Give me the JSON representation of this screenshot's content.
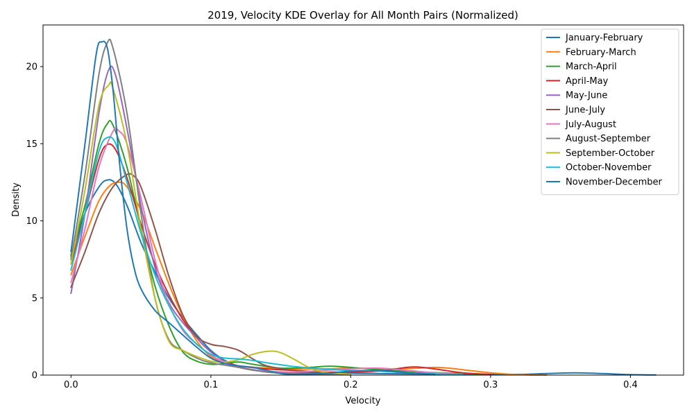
{
  "chart_data": {
    "type": "line",
    "title": "2019, Velocity KDE Overlay for All Month Pairs (Normalized)",
    "xlabel": "Velocity",
    "ylabel": "Density",
    "xlim": [
      -0.02,
      0.438
    ],
    "ylim": [
      0,
      22.7
    ],
    "xticks": [
      0.0,
      0.1,
      0.2,
      0.3,
      0.4
    ],
    "xtick_labels": [
      "0.0",
      "0.1",
      "0.2",
      "0.3",
      "0.4"
    ],
    "yticks": [
      0,
      5,
      10,
      15,
      20
    ],
    "ytick_labels": [
      "0",
      "5",
      "10",
      "15",
      "20"
    ],
    "grid": false,
    "legend_position": "top-right",
    "series": [
      {
        "name": "January-February",
        "color": "#1f77b4",
        "points": [
          [
            0,
            7.7
          ],
          [
            0.01,
            10.5
          ],
          [
            0.02,
            12.2
          ],
          [
            0.026,
            12.65
          ],
          [
            0.032,
            12.4
          ],
          [
            0.04,
            11.0
          ],
          [
            0.05,
            8.6
          ],
          [
            0.06,
            6.7
          ],
          [
            0.07,
            5.0
          ],
          [
            0.08,
            3.7
          ],
          [
            0.09,
            2.6
          ],
          [
            0.1,
            1.6
          ],
          [
            0.11,
            0.95
          ],
          [
            0.12,
            0.55
          ],
          [
            0.13,
            0.35
          ],
          [
            0.15,
            0.2
          ],
          [
            0.18,
            0.15
          ],
          [
            0.2,
            0.12
          ],
          [
            0.24,
            0.08
          ],
          [
            0.28,
            0.05
          ],
          [
            0.32,
            0.05
          ],
          [
            0.34,
            0.1
          ],
          [
            0.36,
            0.15
          ],
          [
            0.38,
            0.1
          ],
          [
            0.4,
            0.03
          ],
          [
            0.418,
            0.01
          ]
        ]
      },
      {
        "name": "February-March",
        "color": "#ff7f0e",
        "points": [
          [
            0,
            6.5
          ],
          [
            0.01,
            9.0
          ],
          [
            0.02,
            11.3
          ],
          [
            0.028,
            12.3
          ],
          [
            0.035,
            12.5
          ],
          [
            0.04,
            12.2
          ],
          [
            0.05,
            10.7
          ],
          [
            0.06,
            8.3
          ],
          [
            0.07,
            5.9
          ],
          [
            0.08,
            3.8
          ],
          [
            0.09,
            2.2
          ],
          [
            0.1,
            1.2
          ],
          [
            0.11,
            0.8
          ],
          [
            0.12,
            0.6
          ],
          [
            0.14,
            0.45
          ],
          [
            0.16,
            0.4
          ],
          [
            0.18,
            0.4
          ],
          [
            0.2,
            0.45
          ],
          [
            0.22,
            0.42
          ],
          [
            0.24,
            0.42
          ],
          [
            0.26,
            0.5
          ],
          [
            0.27,
            0.45
          ],
          [
            0.28,
            0.35
          ],
          [
            0.3,
            0.15
          ],
          [
            0.32,
            0.03
          ],
          [
            0.34,
            0.0
          ]
        ]
      },
      {
        "name": "March-April",
        "color": "#2ca02c",
        "points": [
          [
            0,
            7.8
          ],
          [
            0.01,
            11.0
          ],
          [
            0.02,
            15.0
          ],
          [
            0.026,
            16.3
          ],
          [
            0.03,
            16.2
          ],
          [
            0.04,
            13.5
          ],
          [
            0.05,
            9.5
          ],
          [
            0.06,
            5.8
          ],
          [
            0.07,
            3.2
          ],
          [
            0.08,
            1.5
          ],
          [
            0.09,
            0.9
          ],
          [
            0.1,
            0.7
          ],
          [
            0.11,
            0.75
          ],
          [
            0.12,
            0.85
          ],
          [
            0.13,
            0.7
          ],
          [
            0.15,
            0.45
          ],
          [
            0.17,
            0.5
          ],
          [
            0.185,
            0.58
          ],
          [
            0.2,
            0.5
          ],
          [
            0.22,
            0.35
          ],
          [
            0.25,
            0.2
          ],
          [
            0.28,
            0.1
          ],
          [
            0.3,
            0.03
          ]
        ]
      },
      {
        "name": "April-May",
        "color": "#d62728",
        "points": [
          [
            0,
            7.2
          ],
          [
            0.01,
            10.5
          ],
          [
            0.02,
            14.0
          ],
          [
            0.026,
            14.95
          ],
          [
            0.032,
            14.6
          ],
          [
            0.04,
            12.8
          ],
          [
            0.05,
            9.8
          ],
          [
            0.06,
            7.2
          ],
          [
            0.07,
            5.2
          ],
          [
            0.08,
            3.6
          ],
          [
            0.09,
            2.4
          ],
          [
            0.1,
            1.5
          ],
          [
            0.11,
            0.9
          ],
          [
            0.12,
            0.6
          ],
          [
            0.14,
            0.4
          ],
          [
            0.16,
            0.3
          ],
          [
            0.18,
            0.2
          ],
          [
            0.2,
            0.2
          ],
          [
            0.22,
            0.25
          ],
          [
            0.24,
            0.5
          ],
          [
            0.248,
            0.52
          ],
          [
            0.26,
            0.4
          ],
          [
            0.28,
            0.15
          ],
          [
            0.3,
            0.05
          ]
        ]
      },
      {
        "name": "May-June",
        "color": "#9467bd",
        "points": [
          [
            0,
            5.3
          ],
          [
            0.01,
            10.5
          ],
          [
            0.02,
            17.0
          ],
          [
            0.027,
            19.8
          ],
          [
            0.032,
            19.4
          ],
          [
            0.04,
            16.0
          ],
          [
            0.05,
            11.0
          ],
          [
            0.06,
            7.0
          ],
          [
            0.07,
            4.7
          ],
          [
            0.08,
            3.4
          ],
          [
            0.09,
            2.4
          ],
          [
            0.1,
            1.5
          ],
          [
            0.11,
            0.9
          ],
          [
            0.12,
            0.5
          ],
          [
            0.14,
            0.2
          ],
          [
            0.16,
            0.1
          ],
          [
            0.18,
            0.05
          ],
          [
            0.2,
            0.03
          ]
        ]
      },
      {
        "name": "June-July",
        "color": "#8c564b",
        "points": [
          [
            0,
            5.7
          ],
          [
            0.01,
            8.0
          ],
          [
            0.02,
            10.5
          ],
          [
            0.03,
            12.2
          ],
          [
            0.04,
            13.0
          ],
          [
            0.045,
            12.9
          ],
          [
            0.05,
            12.2
          ],
          [
            0.06,
            9.5
          ],
          [
            0.07,
            6.4
          ],
          [
            0.08,
            3.9
          ],
          [
            0.09,
            2.5
          ],
          [
            0.1,
            2.0
          ],
          [
            0.11,
            1.85
          ],
          [
            0.12,
            1.6
          ],
          [
            0.13,
            1.05
          ],
          [
            0.14,
            0.6
          ],
          [
            0.16,
            0.3
          ],
          [
            0.18,
            0.15
          ],
          [
            0.2,
            0.08
          ]
        ]
      },
      {
        "name": "July-August",
        "color": "#e377c2",
        "points": [
          [
            0,
            6.0
          ],
          [
            0.01,
            9.5
          ],
          [
            0.02,
            13.5
          ],
          [
            0.03,
            15.8
          ],
          [
            0.034,
            15.85
          ],
          [
            0.04,
            15.0
          ],
          [
            0.05,
            11.5
          ],
          [
            0.06,
            7.5
          ],
          [
            0.07,
            4.6
          ],
          [
            0.08,
            2.9
          ],
          [
            0.09,
            2.0
          ],
          [
            0.1,
            1.3
          ],
          [
            0.11,
            0.8
          ],
          [
            0.12,
            0.5
          ],
          [
            0.14,
            0.25
          ],
          [
            0.16,
            0.2
          ],
          [
            0.18,
            0.3
          ],
          [
            0.2,
            0.4
          ],
          [
            0.22,
            0.45
          ],
          [
            0.24,
            0.3
          ],
          [
            0.26,
            0.15
          ],
          [
            0.28,
            0.05
          ]
        ]
      },
      {
        "name": "August-September",
        "color": "#7f7f7f",
        "points": [
          [
            0,
            7.5
          ],
          [
            0.01,
            13.0
          ],
          [
            0.02,
            19.5
          ],
          [
            0.026,
            21.55
          ],
          [
            0.03,
            21.2
          ],
          [
            0.04,
            17.0
          ],
          [
            0.05,
            10.5
          ],
          [
            0.06,
            5.0
          ],
          [
            0.07,
            2.3
          ],
          [
            0.08,
            1.6
          ],
          [
            0.09,
            1.1
          ],
          [
            0.1,
            0.8
          ],
          [
            0.12,
            0.5
          ],
          [
            0.14,
            0.2
          ],
          [
            0.16,
            0.1
          ],
          [
            0.18,
            0.05
          ],
          [
            0.2,
            0.02
          ]
        ]
      },
      {
        "name": "September-October",
        "color": "#bcbd22",
        "points": [
          [
            0,
            7.2
          ],
          [
            0.01,
            12.0
          ],
          [
            0.02,
            17.5
          ],
          [
            0.027,
            18.8
          ],
          [
            0.03,
            18.6
          ],
          [
            0.04,
            15.0
          ],
          [
            0.05,
            9.5
          ],
          [
            0.06,
            5.0
          ],
          [
            0.07,
            2.2
          ],
          [
            0.08,
            1.6
          ],
          [
            0.09,
            1.2
          ],
          [
            0.1,
            0.9
          ],
          [
            0.11,
            0.85
          ],
          [
            0.12,
            1.0
          ],
          [
            0.13,
            1.35
          ],
          [
            0.142,
            1.55
          ],
          [
            0.15,
            1.45
          ],
          [
            0.16,
            1.0
          ],
          [
            0.17,
            0.5
          ],
          [
            0.18,
            0.2
          ],
          [
            0.2,
            0.05
          ]
        ]
      },
      {
        "name": "October-November",
        "color": "#17becf",
        "points": [
          [
            0,
            6.8
          ],
          [
            0.01,
            10.5
          ],
          [
            0.02,
            14.5
          ],
          [
            0.026,
            15.4
          ],
          [
            0.032,
            15.0
          ],
          [
            0.04,
            12.5
          ],
          [
            0.05,
            9.2
          ],
          [
            0.06,
            6.5
          ],
          [
            0.07,
            4.5
          ],
          [
            0.08,
            3.0
          ],
          [
            0.09,
            2.0
          ],
          [
            0.1,
            1.35
          ],
          [
            0.11,
            1.1
          ],
          [
            0.12,
            1.05
          ],
          [
            0.13,
            0.95
          ],
          [
            0.14,
            0.8
          ],
          [
            0.16,
            0.55
          ],
          [
            0.18,
            0.4
          ],
          [
            0.2,
            0.3
          ],
          [
            0.22,
            0.25
          ],
          [
            0.24,
            0.15
          ],
          [
            0.26,
            0.08
          ],
          [
            0.28,
            0.03
          ]
        ]
      },
      {
        "name": "November-December",
        "color": "#1f77b4",
        "points": [
          [
            0,
            8.0
          ],
          [
            0.01,
            15.0
          ],
          [
            0.018,
            20.8
          ],
          [
            0.022,
            21.6
          ],
          [
            0.026,
            21.2
          ],
          [
            0.03,
            18.5
          ],
          [
            0.035,
            13.5
          ],
          [
            0.04,
            9.5
          ],
          [
            0.045,
            7.0
          ],
          [
            0.05,
            5.6
          ],
          [
            0.06,
            4.2
          ],
          [
            0.07,
            3.4
          ],
          [
            0.08,
            2.6
          ],
          [
            0.09,
            1.8
          ],
          [
            0.1,
            1.1
          ],
          [
            0.11,
            0.75
          ],
          [
            0.12,
            0.6
          ],
          [
            0.13,
            0.5
          ],
          [
            0.14,
            0.3
          ],
          [
            0.15,
            0.1
          ],
          [
            0.16,
            0.05
          ],
          [
            0.18,
            0.1
          ],
          [
            0.2,
            0.25
          ],
          [
            0.22,
            0.3
          ],
          [
            0.24,
            0.15
          ],
          [
            0.26,
            0.05
          ]
        ]
      }
    ]
  }
}
